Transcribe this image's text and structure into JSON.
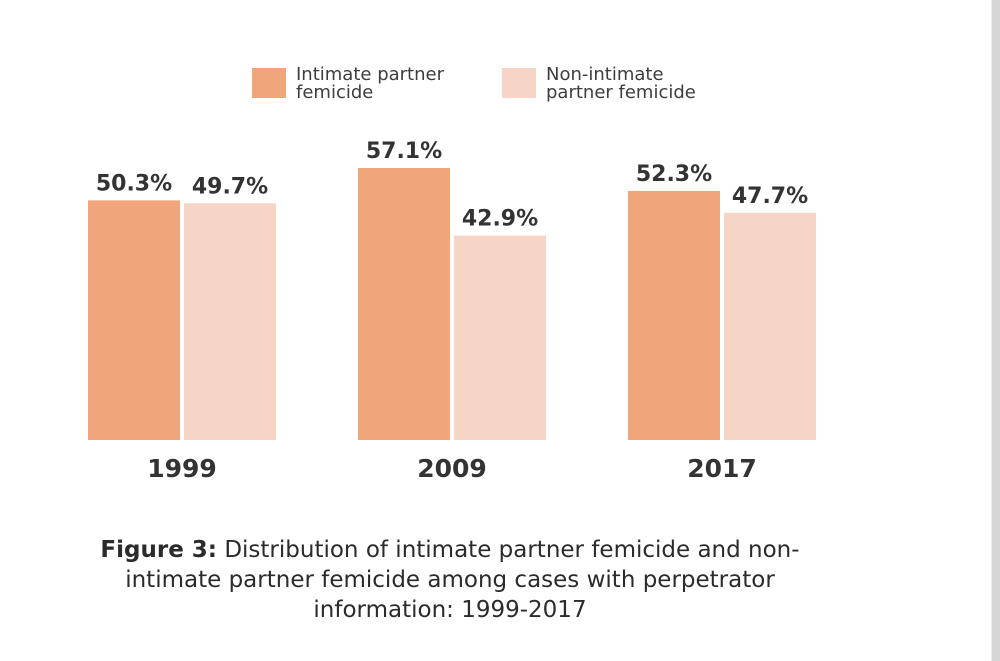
{
  "chart_data": {
    "type": "bar",
    "categories": [
      "1999",
      "2009",
      "2017"
    ],
    "series": [
      {
        "name": "Intimate partner femicide",
        "name_lines": [
          "Intimate partner",
          "femicide"
        ],
        "values": [
          50.3,
          57.1,
          52.3
        ],
        "labels": [
          "50.3%",
          "57.1%",
          "52.3%"
        ],
        "color": "#f0a67a"
      },
      {
        "name": "Non-intimate partner femicide",
        "name_lines": [
          "Non-intimate",
          "partner femicide"
        ],
        "values": [
          49.7,
          42.9,
          47.7
        ],
        "labels": [
          "49.7%",
          "42.9%",
          "47.7%"
        ],
        "color": "#f7d5c6"
      }
    ],
    "ylim": [
      0,
      100
    ],
    "grid": false,
    "legend_position": "top"
  },
  "caption": {
    "bold": "Figure 3:",
    "text": " Distribution of intimate partner femicide and non-intimate partner femicide among cases with perpetrator information: 1999-2017"
  }
}
